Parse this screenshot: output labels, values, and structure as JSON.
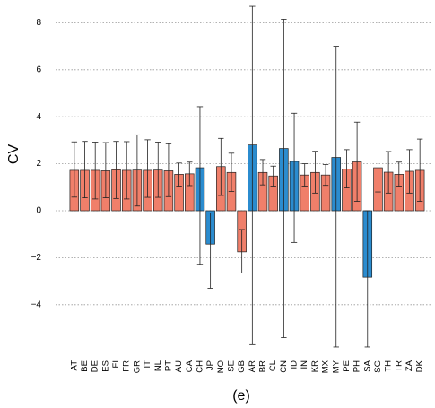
{
  "chart_data": {
    "type": "bar",
    "title": "",
    "xlabel": "(e)",
    "ylabel": "CV",
    "ylim": [
      -5.9,
      8.7
    ],
    "yticks": [
      -4,
      -2,
      0,
      2,
      4,
      6,
      8
    ],
    "ytick_labels": [
      "−4",
      "−2",
      "0",
      "2",
      "4",
      "6",
      "8"
    ],
    "grid": "horizontal dotted",
    "colors": {
      "positive": "#f07f6a",
      "negative": "#2b8ccf",
      "outline": "#222222",
      "grid": "#999999"
    },
    "categories": [
      "AT",
      "BE",
      "DE",
      "ES",
      "FI",
      "FR",
      "GR",
      "IT",
      "NL",
      "PT",
      "AU",
      "CA",
      "CH",
      "JP",
      "NO",
      "SE",
      "GB",
      "AR",
      "BR",
      "CL",
      "CN",
      "ID",
      "IN",
      "KR",
      "MX",
      "MY",
      "PE",
      "PH",
      "SA",
      "SG",
      "TH",
      "TR",
      "ZA",
      "DK"
    ],
    "values": [
      1.72,
      1.72,
      1.72,
      1.7,
      1.74,
      1.72,
      1.73,
      1.72,
      1.73,
      1.7,
      1.55,
      1.57,
      1.83,
      -1.42,
      1.88,
      1.63,
      -1.75,
      2.8,
      1.63,
      1.48,
      2.65,
      2.1,
      1.52,
      1.63,
      1.52,
      2.27,
      1.78,
      2.08,
      -2.83,
      1.83,
      1.64,
      1.55,
      1.68,
      1.72
    ],
    "bar_color": [
      "positive",
      "positive",
      "positive",
      "positive",
      "positive",
      "positive",
      "positive",
      "positive",
      "positive",
      "positive",
      "positive",
      "positive",
      "negative",
      "negative",
      "positive",
      "positive",
      "positive",
      "negative",
      "positive",
      "positive",
      "negative",
      "negative",
      "positive",
      "positive",
      "positive",
      "negative",
      "positive",
      "positive",
      "negative",
      "positive",
      "positive",
      "positive",
      "positive",
      "positive"
    ],
    "error_low": [
      0.58,
      0.55,
      0.5,
      0.55,
      0.52,
      0.5,
      0.2,
      0.57,
      0.57,
      0.6,
      1.05,
      1.07,
      -2.28,
      -3.3,
      0.65,
      0.82,
      -2.65,
      -5.7,
      1.1,
      1.05,
      -5.4,
      -1.35,
      1.05,
      0.75,
      1.08,
      -5.8,
      0.97,
      0.4,
      -5.8,
      0.8,
      0.75,
      1.05,
      0.75,
      0.4
    ],
    "error_high": [
      2.93,
      2.95,
      2.92,
      2.9,
      2.95,
      2.94,
      3.23,
      3.02,
      2.92,
      2.85,
      2.03,
      2.07,
      4.43,
      -0.1,
      3.08,
      2.45,
      -0.8,
      8.7,
      2.18,
      1.9,
      8.15,
      4.15,
      2.0,
      2.53,
      1.97,
      7.0,
      2.6,
      3.77,
      0.0,
      2.88,
      2.52,
      2.07,
      2.6,
      3.05
    ]
  }
}
